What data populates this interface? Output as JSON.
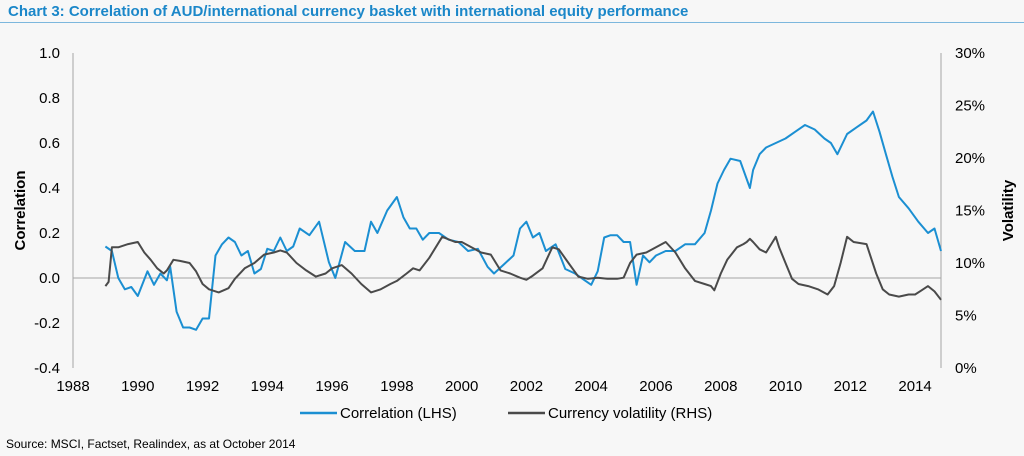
{
  "title": "Chart 3: Correlation of AUD/international currency basket with international equity performance",
  "source": "Source: MSCI, Factset, Realindex, as at October 2014",
  "chart_data": {
    "type": "line",
    "title": "Chart 3: Correlation of AUD/international currency basket with international equity performance",
    "xlabel": "",
    "ylabel_left": "Correlation",
    "ylabel_right": "Volatility",
    "xlim": [
      1988,
      2014.8
    ],
    "ylim_left": [
      -0.4,
      1.0
    ],
    "ylim_right": [
      0,
      30
    ],
    "x_ticks": [
      "1988",
      "1990",
      "1992",
      "1994",
      "1996",
      "1998",
      "2000",
      "2002",
      "2004",
      "2006",
      "2008",
      "2010",
      "2012",
      "2014"
    ],
    "y_left_ticks": [
      "1.0",
      "0.8",
      "0.6",
      "0.4",
      "0.2",
      "0.0",
      "-0.2",
      "-0.4"
    ],
    "y_right_ticks": [
      "30%",
      "25%",
      "20%",
      "15%",
      "10%",
      "5%",
      "0%"
    ],
    "grid": false,
    "legend": "bottom-center",
    "colors": {
      "correlation": "#1b8fd2",
      "volatility": "#4a4a4a"
    },
    "series": [
      {
        "name": "Correlation (LHS)",
        "axis": "left",
        "x": [
          1989.0,
          1989.2,
          1989.4,
          1989.6,
          1989.8,
          1990.0,
          1990.3,
          1990.5,
          1990.7,
          1990.9,
          1991.0,
          1991.2,
          1991.4,
          1991.6,
          1991.8,
          1992.0,
          1992.2,
          1992.4,
          1992.6,
          1992.8,
          1993.0,
          1993.2,
          1993.4,
          1993.6,
          1993.8,
          1994.0,
          1994.2,
          1994.4,
          1994.6,
          1994.8,
          1995.0,
          1995.3,
          1995.6,
          1995.9,
          1996.1,
          1996.4,
          1996.7,
          1997.0,
          1997.2,
          1997.4,
          1997.7,
          1998.0,
          1998.2,
          1998.4,
          1998.6,
          1998.8,
          1999.0,
          1999.3,
          1999.6,
          1999.9,
          2000.2,
          2000.5,
          2000.8,
          2001.0,
          2001.3,
          2001.6,
          2001.8,
          2002.0,
          2002.2,
          2002.4,
          2002.6,
          2002.9,
          2003.2,
          2003.5,
          2003.8,
          2004.0,
          2004.2,
          2004.4,
          2004.6,
          2004.8,
          2005.0,
          2005.2,
          2005.4,
          2005.6,
          2005.8,
          2006.0,
          2006.3,
          2006.6,
          2006.9,
          2007.2,
          2007.5,
          2007.7,
          2007.9,
          2008.1,
          2008.3,
          2008.6,
          2008.9,
          2009.0,
          2009.2,
          2009.4,
          2009.7,
          2010.0,
          2010.3,
          2010.6,
          2010.9,
          2011.2,
          2011.4,
          2011.6,
          2011.9,
          2012.2,
          2012.5,
          2012.7,
          2012.9,
          2013.1,
          2013.3,
          2013.5,
          2013.8,
          2014.1,
          2014.4,
          2014.6,
          2014.8
        ],
        "y": [
          0.14,
          0.12,
          0.0,
          -0.05,
          -0.04,
          -0.08,
          0.03,
          -0.03,
          0.02,
          -0.01,
          0.05,
          -0.15,
          -0.22,
          -0.22,
          -0.23,
          -0.18,
          -0.18,
          0.1,
          0.15,
          0.18,
          0.16,
          0.1,
          0.12,
          0.02,
          0.04,
          0.13,
          0.12,
          0.18,
          0.12,
          0.14,
          0.22,
          0.19,
          0.25,
          0.07,
          0.0,
          0.16,
          0.12,
          0.12,
          0.25,
          0.2,
          0.3,
          0.36,
          0.27,
          0.22,
          0.22,
          0.17,
          0.2,
          0.2,
          0.17,
          0.16,
          0.12,
          0.13,
          0.05,
          0.02,
          0.06,
          0.1,
          0.22,
          0.25,
          0.18,
          0.2,
          0.12,
          0.15,
          0.04,
          0.02,
          -0.01,
          -0.03,
          0.03,
          0.18,
          0.19,
          0.19,
          0.16,
          0.16,
          -0.03,
          0.1,
          0.07,
          0.1,
          0.12,
          0.12,
          0.15,
          0.15,
          0.2,
          0.3,
          0.42,
          0.48,
          0.53,
          0.52,
          0.4,
          0.48,
          0.55,
          0.58,
          0.6,
          0.62,
          0.65,
          0.68,
          0.66,
          0.62,
          0.6,
          0.55,
          0.64,
          0.67,
          0.7,
          0.74,
          0.65,
          0.55,
          0.45,
          0.36,
          0.31,
          0.25,
          0.2,
          0.22,
          0.12
        ]
      },
      {
        "name": "Currency volatility (RHS)",
        "axis": "right",
        "x": [
          1989.0,
          1989.1,
          1989.2,
          1989.4,
          1989.7,
          1990.0,
          1990.2,
          1990.4,
          1990.6,
          1990.8,
          1990.9,
          1991.1,
          1991.3,
          1991.6,
          1991.8,
          1992.0,
          1992.2,
          1992.5,
          1992.8,
          1993.0,
          1993.3,
          1993.6,
          1993.9,
          1994.2,
          1994.4,
          1994.6,
          1994.9,
          1995.2,
          1995.5,
          1995.8,
          1996.0,
          1996.3,
          1996.6,
          1996.9,
          1997.2,
          1997.5,
          1997.8,
          1998.0,
          1998.3,
          1998.5,
          1998.7,
          1999.0,
          1999.4,
          1999.8,
          2000.0,
          2000.3,
          2000.6,
          2000.9,
          2001.2,
          2001.5,
          2001.8,
          2002.0,
          2002.2,
          2002.5,
          2002.8,
          2003.0,
          2003.3,
          2003.6,
          2003.9,
          2004.2,
          2004.5,
          2004.8,
          2005.0,
          2005.2,
          2005.4,
          2005.7,
          2006.0,
          2006.3,
          2006.6,
          2006.9,
          2007.2,
          2007.5,
          2007.7,
          2007.8,
          2008.0,
          2008.2,
          2008.5,
          2008.7,
          2008.8,
          2008.9,
          2009.0,
          2009.2,
          2009.4,
          2009.6,
          2009.7,
          2009.8,
          2010.0,
          2010.2,
          2010.4,
          2010.7,
          2011.0,
          2011.3,
          2011.5,
          2011.7,
          2011.9,
          2012.1,
          2012.5,
          2012.8,
          2013.0,
          2013.2,
          2013.5,
          2013.8,
          2014.0,
          2014.2,
          2014.4,
          2014.6,
          2014.8
        ],
        "y": [
          7.8,
          8.2,
          11.5,
          11.5,
          11.8,
          12.0,
          11.0,
          10.3,
          9.5,
          9.0,
          9.3,
          10.3,
          10.2,
          10.0,
          9.2,
          8.0,
          7.5,
          7.2,
          7.6,
          8.5,
          9.5,
          10.0,
          10.8,
          11.0,
          11.2,
          11.0,
          10.0,
          9.3,
          8.7,
          9.0,
          9.5,
          9.8,
          9.0,
          8.0,
          7.2,
          7.5,
          8.0,
          8.3,
          9.0,
          9.5,
          9.3,
          10.5,
          12.5,
          12.0,
          12.0,
          11.5,
          11.0,
          10.8,
          9.3,
          9.0,
          8.6,
          8.4,
          8.8,
          9.5,
          11.5,
          11.3,
          10.0,
          8.7,
          8.5,
          8.6,
          8.5,
          8.5,
          8.6,
          10.0,
          10.8,
          11.0,
          11.5,
          12.0,
          11.0,
          9.5,
          8.3,
          8.0,
          7.8,
          7.4,
          9.0,
          10.3,
          11.5,
          11.8,
          12.0,
          12.3,
          12.0,
          11.3,
          11.0,
          12.0,
          12.5,
          11.5,
          10.0,
          8.5,
          8.0,
          7.8,
          7.5,
          7.0,
          7.8,
          10.0,
          12.5,
          12.0,
          11.8,
          9.0,
          7.5,
          7.0,
          6.8,
          7.0,
          7.0,
          7.4,
          7.8,
          7.3,
          6.5
        ]
      }
    ]
  }
}
